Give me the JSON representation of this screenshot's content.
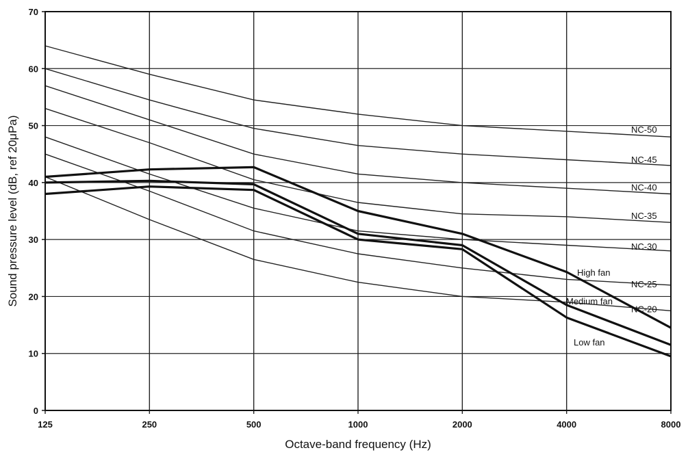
{
  "chart_data": {
    "type": "line",
    "xlabel": "Octave-band frequency (Hz)",
    "ylabel": "Sound pressure level (dB, ref 20μPa)",
    "x_scale": "log2",
    "categories": [
      "125",
      "250",
      "500",
      "1000",
      "2000",
      "4000",
      "8000"
    ],
    "ylim": [
      0,
      70
    ],
    "yticks": [
      "0",
      "10",
      "20",
      "30",
      "40",
      "50",
      "60",
      "70"
    ],
    "grid": "horizontal",
    "reference_curves": [
      {
        "name": "NC-50",
        "values": [
          64,
          59,
          54.5,
          52,
          50,
          49,
          48
        ]
      },
      {
        "name": "NC-45",
        "values": [
          60,
          54.5,
          49.5,
          46.5,
          45,
          44,
          43
        ]
      },
      {
        "name": "NC-40",
        "values": [
          57,
          51,
          45,
          41.5,
          40,
          39,
          38
        ]
      },
      {
        "name": "NC-35",
        "values": [
          53,
          47,
          40.5,
          36.5,
          34.5,
          34,
          33
        ]
      },
      {
        "name": "NC-30",
        "values": [
          48,
          41.5,
          35.5,
          31.5,
          30,
          29,
          28
        ]
      },
      {
        "name": "NC-25",
        "values": [
          45,
          38.5,
          31.5,
          27.5,
          25,
          23,
          22
        ]
      },
      {
        "name": "NC-20",
        "values": [
          41,
          33.5,
          26.5,
          22.5,
          20,
          19,
          17.5
        ]
      }
    ],
    "series": [
      {
        "name": "High fan",
        "values": [
          41,
          42.3,
          42.7,
          35,
          31,
          24.3,
          14.5
        ]
      },
      {
        "name": "Medium fan",
        "values": [
          40,
          40.3,
          39.7,
          31,
          29,
          18.5,
          11.5
        ]
      },
      {
        "name": "Low fan",
        "values": [
          38,
          39.3,
          38.7,
          30,
          28.3,
          16.3,
          9.5
        ]
      }
    ]
  }
}
